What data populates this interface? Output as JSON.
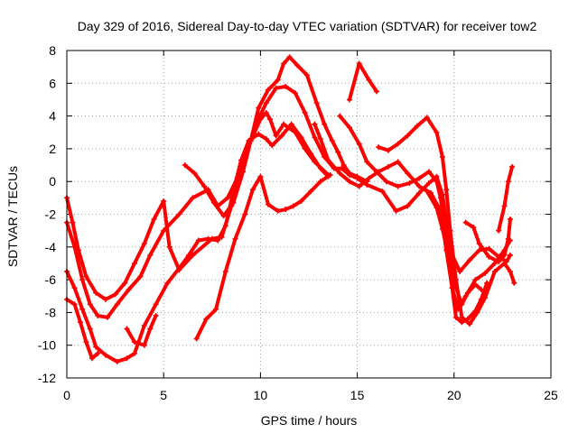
{
  "chart_data": {
    "type": "line",
    "title": "Day 329 of 2016, Sidereal Day-to-day VTEC variation (SDTVAR) for receiver tow2",
    "xlabel": "GPS time / hours",
    "ylabel": "SDTVAR / TECUs",
    "xlim": [
      0,
      25
    ],
    "ylim": [
      -12,
      8
    ],
    "xticks": [
      "0",
      "5",
      "10",
      "15",
      "20",
      "25"
    ],
    "yticks": [
      "-12",
      "-10",
      "-8",
      "-6",
      "-4",
      "-2",
      "0",
      "2",
      "4",
      "6",
      "8"
    ],
    "xtick_values": [
      0,
      5,
      10,
      15,
      20,
      25
    ],
    "ytick_values": [
      -12,
      -10,
      -8,
      -6,
      -4,
      -2,
      0,
      2,
      4,
      6,
      8
    ],
    "grid": true,
    "legend": "none",
    "series_color": "#ff0000",
    "series": [
      {
        "name": "trace-1",
        "points": [
          [
            0,
            -1
          ],
          [
            0.3,
            -2.5
          ],
          [
            0.6,
            -4.2
          ],
          [
            1,
            -5.8
          ],
          [
            1.5,
            -6.8
          ],
          [
            2,
            -7.2
          ],
          [
            2.5,
            -6.9
          ],
          [
            3,
            -6.2
          ],
          [
            3.5,
            -5.0
          ],
          [
            4,
            -3.8
          ],
          [
            4.5,
            -2.3
          ],
          [
            5,
            -1.2
          ],
          [
            5.3,
            -4.0
          ],
          [
            5.8,
            -5.4
          ],
          [
            6.5,
            -4.5
          ],
          [
            7.5,
            -3.5
          ],
          [
            8,
            -3.4
          ],
          [
            8.5,
            -1.5
          ],
          [
            9,
            0.8
          ],
          [
            9.5,
            2.5
          ],
          [
            10,
            3.8
          ],
          [
            10.3,
            4.2
          ],
          [
            10.5,
            3.8
          ],
          [
            10.8,
            2.8
          ],
          [
            11.2,
            3.5
          ],
          [
            11.8,
            3.0
          ],
          [
            12.3,
            2.0
          ],
          [
            12.8,
            1.2
          ],
          [
            13.5,
            0.4
          ]
        ]
      },
      {
        "name": "trace-2",
        "points": [
          [
            0,
            -2.5
          ],
          [
            0.4,
            -4.0
          ],
          [
            0.8,
            -6.0
          ],
          [
            1.2,
            -7.5
          ],
          [
            1.6,
            -8.2
          ],
          [
            2.1,
            -8.3
          ],
          [
            2.6,
            -7.5
          ],
          [
            3.2,
            -6.6
          ],
          [
            3.8,
            -5.8
          ],
          [
            4.3,
            -4.5
          ],
          [
            5,
            -3.0
          ],
          [
            5.8,
            -2.0
          ],
          [
            6.5,
            -1.0
          ],
          [
            7.3,
            -0.5
          ],
          [
            7.8,
            -1.5
          ],
          [
            8.3,
            -1.0
          ],
          [
            8.8,
            0.2
          ],
          [
            9.3,
            1.8
          ],
          [
            9.8,
            3.6
          ],
          [
            10.3,
            4.8
          ],
          [
            10.8,
            5.7
          ],
          [
            11.3,
            5.8
          ],
          [
            11.8,
            5.4
          ],
          [
            12.3,
            4.2
          ],
          [
            12.8,
            2.7
          ],
          [
            13.3,
            1.5
          ],
          [
            13.8,
            0.8
          ],
          [
            14.2,
            0.8
          ],
          [
            14.6,
            0.4
          ],
          [
            15.0,
            0.2
          ],
          [
            15.5,
            -0.2
          ],
          [
            16.3,
            -0.6
          ],
          [
            17,
            -1.8
          ],
          [
            17.6,
            -1.5
          ],
          [
            18.2,
            -0.7
          ],
          [
            18.7,
            -0.1
          ],
          [
            19.1,
            0.3
          ],
          [
            19.4,
            -0.8
          ],
          [
            19.6,
            -2.5
          ],
          [
            19.9,
            -4.5
          ],
          [
            20.3,
            -5.5
          ],
          [
            20.8,
            -4.8
          ],
          [
            21.3,
            -4.2
          ],
          [
            21.8,
            -4.1
          ],
          [
            22.3,
            -4.6
          ],
          [
            22.7,
            -4.9
          ],
          [
            22.9,
            -4.5
          ]
        ]
      },
      {
        "name": "trace-3",
        "points": [
          [
            0,
            -5.5
          ],
          [
            0.4,
            -6.5
          ],
          [
            0.8,
            -7.8
          ],
          [
            1.2,
            -9.0
          ],
          [
            1.5,
            -10.1
          ],
          [
            2,
            -10.6
          ],
          [
            2.6,
            -11.0
          ],
          [
            3.1,
            -10.8
          ],
          [
            3.5,
            -10.5
          ],
          [
            4,
            -8.8
          ],
          [
            4.6,
            -7.5
          ],
          [
            5.2,
            -6.2
          ],
          [
            5.8,
            -5.3
          ],
          [
            6.3,
            -4.5
          ],
          [
            6.8,
            -3.6
          ],
          [
            7.3,
            -3.5
          ],
          [
            7.8,
            -3.6
          ],
          [
            8.2,
            -2.7
          ],
          [
            8.6,
            -0.6
          ],
          [
            9,
            1.3
          ],
          [
            9.4,
            2.5
          ],
          [
            9.9,
            2.9
          ],
          [
            10.3,
            2.6
          ],
          [
            10.6,
            2.2
          ],
          [
            11.1,
            2.8
          ],
          [
            11.6,
            3.5
          ],
          [
            12.1,
            2.7
          ],
          [
            12.6,
            1.7
          ],
          [
            13.1,
            0.8
          ],
          [
            13.5,
            0.3
          ]
        ]
      },
      {
        "name": "trace-4",
        "points": [
          [
            0,
            -7.2
          ],
          [
            0.4,
            -7.5
          ],
          [
            0.7,
            -8.6
          ],
          [
            1,
            -9.8
          ],
          [
            1.3,
            -10.8
          ],
          [
            1.6,
            -10.5
          ]
        ]
      },
      {
        "name": "trace-5",
        "points": [
          [
            3.1,
            -9.0
          ],
          [
            3.5,
            -9.8
          ],
          [
            4,
            -10.0
          ],
          [
            4.3,
            -9.0
          ],
          [
            4.6,
            -8.2
          ]
        ]
      },
      {
        "name": "trace-6",
        "points": [
          [
            6.7,
            -9.6
          ],
          [
            7.2,
            -8.4
          ],
          [
            7.7,
            -7.8
          ],
          [
            8.2,
            -5.5
          ],
          [
            8.7,
            -3.5
          ],
          [
            9.2,
            -2.0
          ],
          [
            9.6,
            -0.5
          ],
          [
            10,
            0.3
          ],
          [
            10.4,
            -1.4
          ],
          [
            10.9,
            -1.8
          ],
          [
            11.3,
            -1.7
          ],
          [
            11.7,
            -1.5
          ],
          [
            12.1,
            -1.2
          ],
          [
            12.6,
            -0.6
          ],
          [
            13.1,
            0.0
          ],
          [
            13.6,
            0.4
          ]
        ]
      },
      {
        "name": "trace-7",
        "points": [
          [
            6.1,
            1.0
          ],
          [
            6.6,
            0.5
          ],
          [
            7.1,
            -0.3
          ],
          [
            7.6,
            -1.3
          ],
          [
            8.1,
            -2.1
          ],
          [
            8.6,
            -1.3
          ],
          [
            9.1,
            0.6
          ],
          [
            9.5,
            2.5
          ],
          [
            9.9,
            4.5
          ],
          [
            10.4,
            5.6
          ],
          [
            10.9,
            6.2
          ],
          [
            11.2,
            7.2
          ],
          [
            11.5,
            7.6
          ],
          [
            11.9,
            7.1
          ],
          [
            12.4,
            6.5
          ],
          [
            12.9,
            4.8
          ],
          [
            13.3,
            3.5
          ],
          [
            13.7,
            2.5
          ],
          [
            14,
            1.8
          ],
          [
            14.3,
            1.0
          ],
          [
            14.6,
            0.5
          ],
          [
            15,
            0.3
          ],
          [
            15.5,
            0.0
          ]
        ]
      },
      {
        "name": "trace-8",
        "points": [
          [
            14.6,
            5.0
          ],
          [
            15.1,
            7.2
          ],
          [
            15.6,
            6.2
          ],
          [
            16,
            5.5
          ]
        ]
      },
      {
        "name": "trace-9",
        "points": [
          [
            12.8,
            3.5
          ],
          [
            13.1,
            2.6
          ],
          [
            13.5,
            1.3
          ],
          [
            14.1,
            0.5
          ],
          [
            14.6,
            0.0
          ],
          [
            15.1,
            -0.3
          ],
          [
            15.6,
            0.2
          ],
          [
            16.1,
            0.6
          ],
          [
            16.6,
            0.9
          ],
          [
            17.1,
            1.2
          ],
          [
            17.6,
            0.5
          ],
          [
            18.2,
            -0.3
          ],
          [
            18.8,
            -0.7
          ],
          [
            19.3,
            -1.8
          ],
          [
            19.6,
            -4.2
          ],
          [
            19.9,
            -6.5
          ],
          [
            20.2,
            -7.8
          ],
          [
            20.6,
            -7.0
          ],
          [
            21.1,
            -6.0
          ],
          [
            21.6,
            -5.6
          ],
          [
            22.1,
            -5.0
          ],
          [
            22.6,
            -4.2
          ],
          [
            22.9,
            -3.6
          ]
        ]
      },
      {
        "name": "trace-10",
        "points": [
          [
            14.1,
            4.0
          ],
          [
            14.6,
            3.3
          ],
          [
            15.1,
            2.3
          ],
          [
            15.5,
            1.2
          ],
          [
            16,
            0.6
          ],
          [
            16.5,
            0.0
          ],
          [
            17.1,
            -0.3
          ],
          [
            17.7,
            -0.1
          ],
          [
            18.2,
            0.2
          ],
          [
            18.7,
            0.6
          ],
          [
            19.1,
            0.0
          ],
          [
            19.3,
            -1.0
          ],
          [
            19.5,
            -2.8
          ],
          [
            19.8,
            -4.8
          ],
          [
            20.1,
            -6.5
          ],
          [
            20.4,
            -7.5
          ],
          [
            20.7,
            -6.8
          ],
          [
            21.1,
            -6.3
          ],
          [
            21.4,
            -6.6
          ]
        ]
      },
      {
        "name": "trace-11",
        "points": [
          [
            16.1,
            2.1
          ],
          [
            16.6,
            1.9
          ],
          [
            17.1,
            2.3
          ],
          [
            17.6,
            2.8
          ],
          [
            18.1,
            3.4
          ],
          [
            18.6,
            3.9
          ],
          [
            19.1,
            3.0
          ],
          [
            19.4,
            1.5
          ],
          [
            19.6,
            -0.5
          ],
          [
            19.8,
            -3.0
          ],
          [
            20.1,
            -6.0
          ],
          [
            20.4,
            -8.3
          ],
          [
            20.8,
            -8.7
          ],
          [
            21.2,
            -8.0
          ],
          [
            21.6,
            -7.1
          ],
          [
            22.1,
            -5.5
          ],
          [
            22.6,
            -5.0
          ],
          [
            22.9,
            -5.5
          ],
          [
            23.1,
            -6.2
          ]
        ]
      },
      {
        "name": "trace-12",
        "points": [
          [
            18.6,
            -0.6
          ],
          [
            19.1,
            -1.6
          ],
          [
            19.4,
            -2.9
          ],
          [
            19.7,
            -4.4
          ],
          [
            19.9,
            -6.5
          ],
          [
            20.1,
            -8.3
          ],
          [
            20.4,
            -8.6
          ],
          [
            20.7,
            -8.4
          ],
          [
            21.1,
            -7.9
          ],
          [
            21.4,
            -7.2
          ],
          [
            21.7,
            -6.2
          ]
        ]
      },
      {
        "name": "trace-13",
        "points": [
          [
            20.6,
            -2.5
          ],
          [
            21.0,
            -2.8
          ],
          [
            21.3,
            -3.8
          ],
          [
            21.8,
            -4.6
          ],
          [
            22.3,
            -4.9
          ],
          [
            22.6,
            -4.5
          ],
          [
            22.8,
            -3.5
          ],
          [
            22.9,
            -2.3
          ]
        ]
      },
      {
        "name": "trace-14",
        "points": [
          [
            22.3,
            -3.0
          ],
          [
            22.6,
            -1.5
          ],
          [
            22.8,
            0.0
          ],
          [
            23.0,
            0.9
          ]
        ]
      }
    ]
  }
}
